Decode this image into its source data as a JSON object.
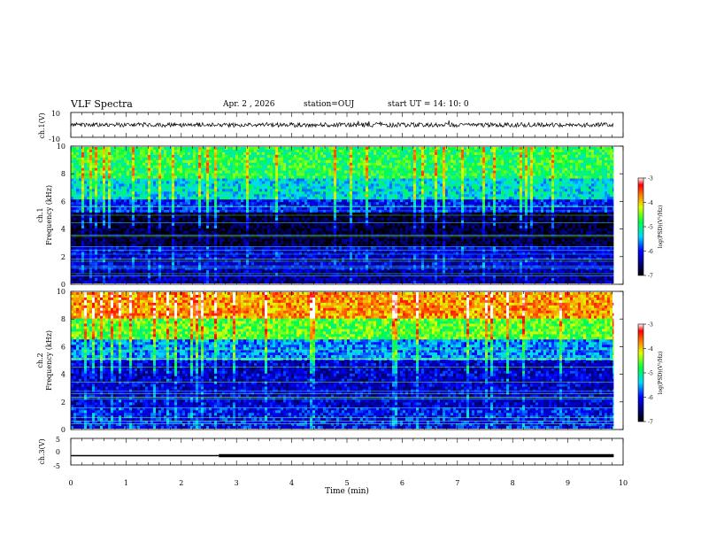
{
  "header": {
    "title": "VLF Spectra",
    "date": "Apr. 2 , 2026",
    "station": "station=OUJ",
    "start": "start UT = 14: 10: 0"
  },
  "chart_data": [
    {
      "type": "line",
      "panel": "waveform-ch1",
      "ylabel": "ch.1(V)",
      "ylim": [
        -10,
        10
      ],
      "yticks": [
        "10",
        "-10"
      ],
      "xlim": [
        0,
        10
      ],
      "description_values": {
        "mean": 0.0,
        "amplitude": 1.2
      }
    },
    {
      "type": "heatmap",
      "panel": "spectrogram-ch1",
      "ylabel": "ch.1\nFrequency (kHz)",
      "ylabel_top": "ch.1",
      "ylabel_main": "Frequency (kHz)",
      "ylim": [
        0,
        10
      ],
      "yticks": [
        "0",
        "2",
        "4",
        "6",
        "8",
        "10"
      ],
      "xlim": [
        0,
        9.83
      ],
      "colorbar": {
        "label": "log(PSD)(V²/Hz)",
        "range": [
          -7,
          -3
        ],
        "ticks": [
          "-3",
          "-4",
          "-5",
          "-6",
          "-7"
        ]
      },
      "bands": [
        {
          "f0": 0.0,
          "f1": 1.0,
          "level": -6.4
        },
        {
          "f0": 1.0,
          "f1": 2.6,
          "level": -6.2
        },
        {
          "f0": 2.6,
          "f1": 5.2,
          "level": -6.8
        },
        {
          "f0": 5.2,
          "f1": 6.2,
          "level": -6.0
        },
        {
          "f0": 6.2,
          "f1": 7.6,
          "level": -5.3
        },
        {
          "f0": 7.6,
          "f1": 10.0,
          "level": -4.8
        }
      ]
    },
    {
      "type": "heatmap",
      "panel": "spectrogram-ch2",
      "ylabel_top": "ch.2",
      "ylabel_main": "Frequency (kHz)",
      "ylim": [
        0,
        10
      ],
      "yticks": [
        "0",
        "2",
        "4",
        "6",
        "8",
        "10"
      ],
      "xlim": [
        0,
        9.83
      ],
      "colorbar": {
        "label": "log(PSD)(V²/Hz)",
        "range": [
          -7,
          -3
        ],
        "ticks": [
          "-3",
          "-4",
          "-5",
          "-6",
          "-7"
        ]
      },
      "bands": [
        {
          "f0": 0.0,
          "f1": 1.5,
          "level": -6.0
        },
        {
          "f0": 1.5,
          "f1": 5.0,
          "level": -6.2
        },
        {
          "f0": 5.0,
          "f1": 6.6,
          "level": -5.6
        },
        {
          "f0": 6.6,
          "f1": 8.0,
          "level": -4.6
        },
        {
          "f0": 8.0,
          "f1": 10.0,
          "level": -3.8
        }
      ]
    },
    {
      "type": "line",
      "panel": "signal-ch3",
      "ylabel": "ch.3(V)",
      "ylim": [
        -5,
        5
      ],
      "yticks": [
        "5",
        "0",
        "-5"
      ],
      "xlim": [
        0,
        10
      ],
      "x": [
        0,
        2.68,
        2.68,
        9.83
      ],
      "y": [
        -1.5,
        -1.5,
        -1.5,
        -1.5
      ]
    }
  ],
  "xaxis": {
    "xlabel": "Time (min)",
    "ticks": [
      "0",
      "1",
      "2",
      "3",
      "4",
      "5",
      "6",
      "7",
      "8",
      "9",
      "10"
    ]
  },
  "colors": {
    "background": "#ffffff",
    "ink": "#000000"
  }
}
